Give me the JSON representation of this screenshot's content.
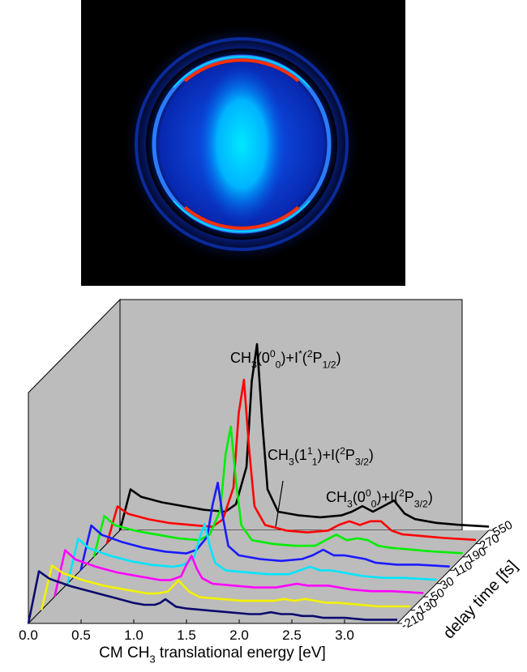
{
  "chart_data": {
    "type": "waterfall",
    "x_label": [
      {
        "text": "CM CH"
      },
      {
        "text": "3",
        "pos": "sub"
      },
      {
        "text": " translational energy [eV]"
      }
    ],
    "depth_label": "delay time [fs]",
    "xlim": [
      0,
      3.5
    ],
    "xticks": [
      {
        "value": 0,
        "label": "0.0"
      },
      0.5,
      {
        "value": 1,
        "label": "1.0"
      },
      1.5,
      {
        "value": 2,
        "label": "2.0"
      },
      2.5,
      {
        "value": 3,
        "label": "3.0"
      }
    ],
    "x": [
      0.0,
      0.1,
      0.2,
      0.4,
      0.6,
      0.8,
      1.0,
      1.1,
      1.2,
      1.25,
      1.3,
      1.35,
      1.4,
      1.5,
      1.7,
      1.9,
      2.1,
      2.2,
      2.3,
      2.4,
      2.5,
      2.6,
      2.7,
      2.8,
      3.0,
      3.2,
      3.5
    ],
    "series": [
      {
        "name": "-210",
        "color": "#0a0a6e",
        "values": [
          0,
          28,
          24,
          20,
          17,
          14,
          11,
          10,
          10,
          11,
          13,
          11,
          9,
          8,
          7,
          6,
          5,
          5,
          6,
          5,
          5,
          4,
          4,
          3,
          3,
          2,
          2
        ]
      },
      {
        "name": "-130",
        "color": "#f2f200",
        "values": [
          0,
          24,
          20,
          16,
          13,
          11,
          9,
          9,
          10,
          13,
          16,
          13,
          10,
          7,
          6,
          5,
          5,
          5,
          6,
          5,
          6,
          5,
          4,
          4,
          3,
          2,
          2
        ]
      },
      {
        "name": "-50",
        "color": "#ff00ff",
        "values": [
          0,
          25,
          20,
          16,
          13,
          11,
          9,
          9,
          11,
          17,
          22,
          15,
          10,
          7,
          6,
          5,
          5,
          6,
          7,
          6,
          6,
          6,
          5,
          4,
          3,
          3,
          2
        ]
      },
      {
        "name": "30",
        "color": "#00e5ff",
        "values": [
          0,
          24,
          19,
          15,
          12,
          10,
          9,
          10,
          14,
          24,
          32,
          20,
          11,
          7,
          6,
          5,
          5,
          7,
          9,
          7,
          7,
          6,
          5,
          4,
          3,
          3,
          2
        ]
      },
      {
        "name": "110",
        "color": "#1a1aff",
        "values": [
          0,
          24,
          19,
          15,
          12,
          10,
          9,
          11,
          18,
          35,
          47,
          28,
          13,
          8,
          6,
          5,
          6,
          8,
          11,
          8,
          8,
          7,
          6,
          4,
          3,
          3,
          2
        ]
      },
      {
        "name": "190",
        "color": "#00ee00",
        "values": [
          0,
          22,
          17,
          14,
          12,
          10,
          9,
          12,
          25,
          55,
          70,
          40,
          17,
          9,
          7,
          6,
          6,
          9,
          12,
          9,
          10,
          9,
          6,
          5,
          4,
          3,
          2
        ]
      },
      {
        "name": "270",
        "color": "#ff0000",
        "values": [
          0,
          20,
          16,
          13,
          11,
          10,
          9,
          13,
          30,
          70,
          88,
          50,
          20,
          10,
          7,
          6,
          7,
          10,
          12,
          10,
          12,
          12,
          7,
          5,
          4,
          3,
          2
        ]
      },
      {
        "name": "550",
        "color": "#000000",
        "values": [
          0,
          22,
          18,
          15,
          13,
          11,
          10,
          14,
          34,
          80,
          100,
          58,
          22,
          10,
          8,
          7,
          8,
          10,
          13,
          10,
          13,
          16,
          9,
          6,
          4,
          3,
          2
        ]
      }
    ],
    "annotations": [
      [
        {
          "text": "CH"
        },
        {
          "text": "3",
          "pos": "sub"
        },
        {
          "text": "(0"
        },
        {
          "text": "0",
          "pos": "sup"
        },
        {
          "text": "0",
          "pos": "sub"
        },
        {
          "text": ")+I"
        },
        {
          "text": "*",
          "pos": "sup"
        },
        {
          "text": "("
        },
        {
          "text": "2",
          "pos": "sup"
        },
        {
          "text": "P"
        },
        {
          "text": "1/2",
          "pos": "sub"
        },
        {
          "text": ")"
        }
      ],
      [
        {
          "text": "CH"
        },
        {
          "text": "3",
          "pos": "sub"
        },
        {
          "text": "(1"
        },
        {
          "text": "1",
          "pos": "sup"
        },
        {
          "text": "1",
          "pos": "sub"
        },
        {
          "text": ")+I("
        },
        {
          "text": "2",
          "pos": "sup"
        },
        {
          "text": "P"
        },
        {
          "text": "3/2",
          "pos": "sub"
        },
        {
          "text": ")"
        }
      ],
      [
        {
          "text": "CH"
        },
        {
          "text": "3",
          "pos": "sub"
        },
        {
          "text": "(0"
        },
        {
          "text": "0",
          "pos": "sup"
        },
        {
          "text": "0",
          "pos": "sub"
        },
        {
          "text": ")+I("
        },
        {
          "text": "2",
          "pos": "sup"
        },
        {
          "text": "P"
        },
        {
          "text": "3/2",
          "pos": "sub"
        },
        {
          "text": ")"
        }
      ]
    ]
  }
}
